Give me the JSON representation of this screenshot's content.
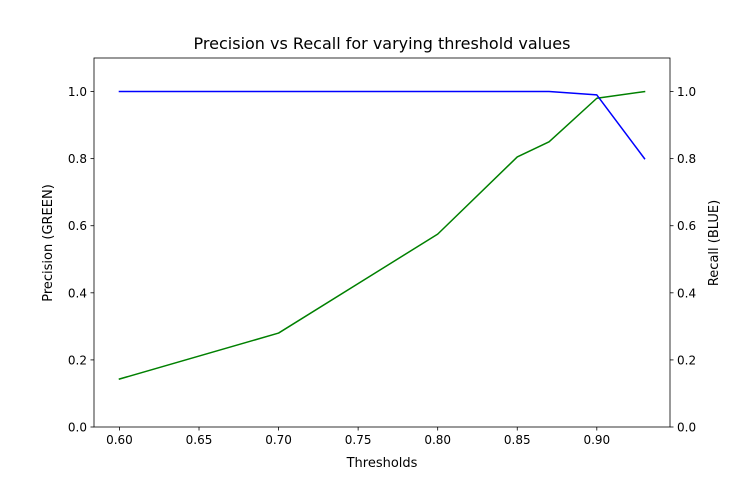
{
  "chart_data": {
    "type": "line",
    "title": "Precision vs Recall for varying threshold values",
    "xlabel": "Thresholds",
    "ylabel_left": "Precision (GREEN)",
    "ylabel_right": "Recall (BLUE)",
    "xlim": [
      0.584,
      0.946
    ],
    "ylim_left": [
      0.0,
      1.1
    ],
    "ylim_right": [
      0.0,
      1.1
    ],
    "x_ticks": [
      "0.60",
      "0.65",
      "0.70",
      "0.75",
      "0.80",
      "0.85",
      "0.90"
    ],
    "y_ticks_left": [
      "0.0",
      "0.2",
      "0.4",
      "0.6",
      "0.8",
      "1.0"
    ],
    "y_ticks_right": [
      "0.0",
      "0.2",
      "0.4",
      "0.6",
      "0.8",
      "1.0"
    ],
    "grid": false,
    "legend": "none",
    "series": [
      {
        "axis": "left",
        "color": "#008000",
        "x": [
          0.6,
          0.7,
          0.8,
          0.85,
          0.87,
          0.9,
          0.93
        ],
        "y": [
          0.143,
          0.28,
          0.575,
          0.805,
          0.85,
          0.98,
          1.0
        ]
      },
      {
        "axis": "right",
        "color": "#0000ff",
        "x": [
          0.6,
          0.7,
          0.8,
          0.85,
          0.87,
          0.9,
          0.93
        ],
        "y": [
          1.0,
          1.0,
          1.0,
          1.0,
          1.0,
          0.99,
          0.8
        ]
      }
    ]
  }
}
